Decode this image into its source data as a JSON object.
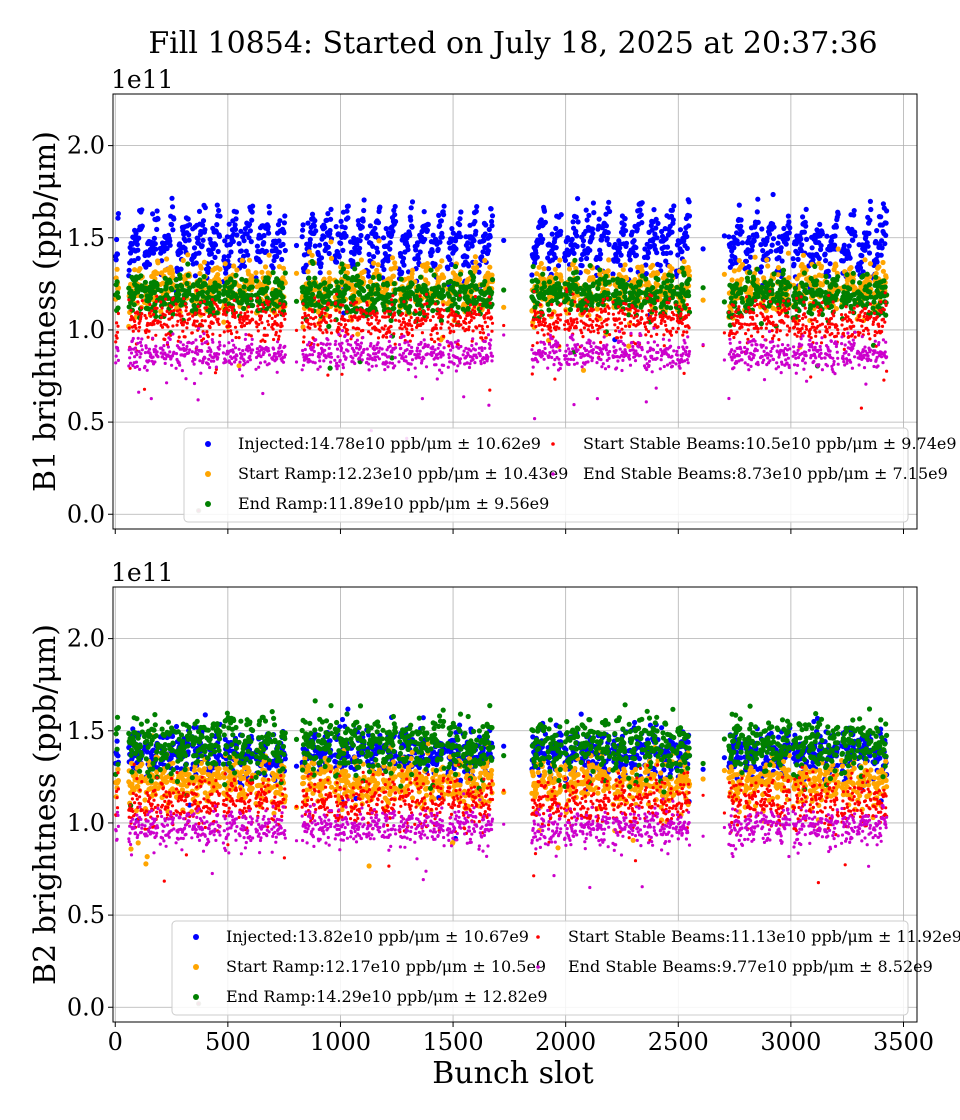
{
  "chart_data": [
    {
      "type": "scatter",
      "title": "Fill 10854: Started on July 18, 2025 at 20:37:36",
      "ylabel": "B1 brightness (ppb/μm)",
      "xlabel": "",
      "offset_text": "1e11",
      "xlim": [
        -10,
        3560
      ],
      "ylim": [
        -0.08,
        2.28
      ],
      "xticks": [
        0,
        500,
        1000,
        1500,
        2000,
        2500,
        3000,
        3500
      ],
      "xtick_labels": [
        "",
        "",
        "",
        "",
        "",
        "",
        "",
        ""
      ],
      "yticks": [
        0.0,
        0.5,
        1.0,
        1.5,
        2.0
      ],
      "ytick_labels": [
        "0.0",
        "0.5",
        "1.0",
        "1.5",
        "2.0"
      ],
      "grid": true,
      "legend_placement": "lower-right",
      "series": [
        {
          "label": "Injected:14.78e10 ppb/μm ± 10.62e9",
          "color": "#0000ff",
          "mean": 1.478,
          "sd": 0.1062,
          "ramp": 0.22,
          "min": 0.02
        },
        {
          "label": "Start Ramp:12.23e10 ppb/μm ± 10.43e9",
          "color": "#ffa500",
          "mean": 1.223,
          "sd": 0.1043,
          "ramp": 0.12,
          "min": 0.02
        },
        {
          "label": "End Ramp:11.89e10 ppb/μm ± 9.56e9",
          "color": "#008000",
          "mean": 1.189,
          "sd": 0.0956,
          "ramp": 0.03,
          "min": 0.02
        },
        {
          "label": "Start Stable Beams:10.5e10 ppb/μm ± 9.74e9",
          "color": "#ff0000",
          "mean": 1.05,
          "sd": 0.0974,
          "ramp": 0.02,
          "min": 0.02
        },
        {
          "label": "End Stable Beams:8.73e10 ppb/μm ± 7.15e9",
          "color": "#cc00cc",
          "mean": 0.873,
          "sd": 0.0715,
          "ramp": 0.02,
          "min": 0.02
        }
      ]
    },
    {
      "type": "scatter",
      "title": "",
      "ylabel": "B2 brightness (ppb/μm)",
      "xlabel": "Bunch slot",
      "offset_text": "1e11",
      "xlim": [
        -10,
        3560
      ],
      "ylim": [
        -0.08,
        2.28
      ],
      "xticks": [
        0,
        500,
        1000,
        1500,
        2000,
        2500,
        3000,
        3500
      ],
      "xtick_labels": [
        "0",
        "500",
        "1000",
        "1500",
        "2000",
        "2500",
        "3000",
        "3500"
      ],
      "yticks": [
        0.0,
        0.5,
        1.0,
        1.5,
        2.0
      ],
      "ytick_labels": [
        "0.0",
        "0.5",
        "1.0",
        "1.5",
        "2.0"
      ],
      "grid": true,
      "legend_placement": "lower-right",
      "series": [
        {
          "label": "Injected:13.82e10 ppb/μm ± 10.67e9",
          "color": "#0000ff",
          "mean": 1.382,
          "sd": 0.1067,
          "ramp": 0.05,
          "min": 0.02
        },
        {
          "label": "Start Ramp:12.17e10 ppb/μm ± 10.5e9",
          "color": "#ffa500",
          "mean": 1.217,
          "sd": 0.105,
          "ramp": 0.05,
          "min": 0.02
        },
        {
          "label": "End Ramp:14.29e10 ppb/μm ± 12.82e9",
          "color": "#008000",
          "mean": 1.429,
          "sd": 0.1282,
          "ramp": 0.04,
          "min": 0.02
        },
        {
          "label": "Start Stable Beams:11.13e10 ppb/μm ± 11.92e9",
          "color": "#ff0000",
          "mean": 1.113,
          "sd": 0.1192,
          "ramp": 0.04,
          "min": 0.02
        },
        {
          "label": "End Stable Beams:9.77e10 ppb/μm ± 8.52e9",
          "color": "#cc00cc",
          "mean": 0.977,
          "sd": 0.0852,
          "ramp": 0.03,
          "min": 0.02
        }
      ]
    }
  ],
  "bunch_trains": [
    [
      2,
      14
    ],
    [
      60,
      120
    ],
    [
      130,
      190
    ],
    [
      200,
      260
    ],
    [
      270,
      330
    ],
    [
      340,
      400
    ],
    [
      405,
      465
    ],
    [
      480,
      540
    ],
    [
      550,
      610
    ],
    [
      625,
      685
    ],
    [
      695,
      755
    ],
    [
      830,
      890
    ],
    [
      900,
      960
    ],
    [
      975,
      1035
    ],
    [
      1045,
      1105
    ],
    [
      1115,
      1175
    ],
    [
      1185,
      1245
    ],
    [
      1260,
      1320
    ],
    [
      1330,
      1390
    ],
    [
      1400,
      1460
    ],
    [
      1475,
      1535
    ],
    [
      1545,
      1605
    ],
    [
      1615,
      1675
    ],
    [
      1850,
      1910
    ],
    [
      1920,
      1980
    ],
    [
      1995,
      2055
    ],
    [
      2065,
      2125
    ],
    [
      2135,
      2195
    ],
    [
      2210,
      2270
    ],
    [
      2280,
      2340
    ],
    [
      2350,
      2410
    ],
    [
      2420,
      2480
    ],
    [
      2490,
      2550
    ],
    [
      2725,
      2785
    ],
    [
      2795,
      2855
    ],
    [
      2865,
      2925
    ],
    [
      2935,
      2995
    ],
    [
      3010,
      3070
    ],
    [
      3080,
      3140
    ],
    [
      3150,
      3210
    ],
    [
      3225,
      3285
    ],
    [
      3295,
      3355
    ],
    [
      3365,
      3425
    ]
  ],
  "isolated_bunches": [
    805,
    1725,
    2610,
    2705
  ]
}
